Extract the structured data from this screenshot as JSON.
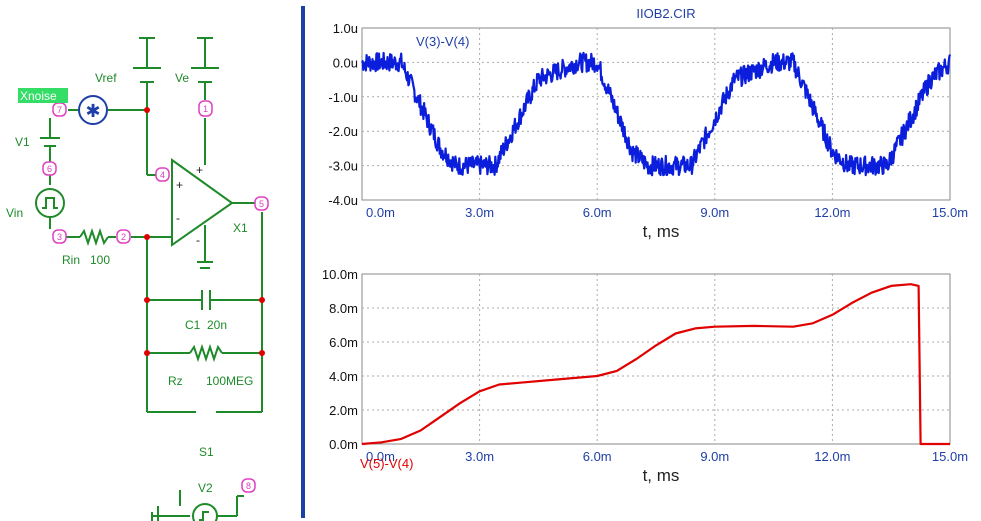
{
  "schematic": {
    "labels": {
      "xnoise": "Xnoise",
      "vref": "Vref",
      "ve": "Ve",
      "v1": "V1",
      "vin": "Vin",
      "rin": "Rin",
      "rin_value": "100",
      "x1": "X1",
      "c1": "C1",
      "c1_value": "20n",
      "rz": "Rz",
      "rz_value": "100MEG",
      "s1": "S1",
      "v2": "V2"
    },
    "nodes": {
      "n7": "7",
      "n1": "1",
      "n4": "4",
      "n6": "6",
      "n5": "5",
      "n3": "3",
      "n2": "2",
      "n8": "8"
    },
    "opamp_signs": {
      "plus": "+",
      "minus": "-"
    },
    "colors": {
      "wire": "#1f8a2a",
      "node": "#e040c0",
      "junction": "#e00000",
      "label": "#1f8a2a",
      "highlight": "#33dd66"
    }
  },
  "chart_data": [
    {
      "type": "line",
      "title": "IIOB2.CIR",
      "xlabel": "t, ms",
      "ylabel": "",
      "x_unit": "ms",
      "xlim": [
        0,
        15
      ],
      "ylim": [
        -4,
        1
      ],
      "x_ticks": [
        0,
        3,
        6,
        9,
        12,
        15
      ],
      "x_tick_labels": [
        "0.0m",
        "3.0m",
        "6.0m",
        "9.0m",
        "12.0m",
        "15.0m"
      ],
      "y_ticks": [
        1,
        0,
        -1,
        -2,
        -3,
        -4
      ],
      "y_tick_labels": [
        "1.0u",
        "0.0u",
        "-1.0u",
        "-2.0u",
        "-3.0u",
        "-4.0u"
      ],
      "grid": true,
      "noise_amplitude": 0.28,
      "series": [
        {
          "name": "V(3)-V(4)",
          "color": "#0a1edc",
          "x": [
            0,
            1.0,
            2.0,
            2.4,
            3.4,
            4.5,
            5.5,
            6.0,
            6.9,
            7.3,
            8.4,
            9.5,
            10.5,
            11.0,
            12.0,
            12.4,
            13.4,
            14.5,
            15.0
          ],
          "y": [
            0.0,
            0.0,
            -2.5,
            -3.0,
            -3.0,
            -0.5,
            0.0,
            0.0,
            -2.6,
            -3.0,
            -3.0,
            -0.5,
            0.0,
            0.0,
            -2.6,
            -3.0,
            -3.0,
            -0.5,
            0.0
          ]
        }
      ]
    },
    {
      "type": "line",
      "title": "",
      "xlabel": "t, ms",
      "ylabel": "",
      "x_unit": "ms",
      "xlim": [
        0,
        15
      ],
      "ylim": [
        0,
        10
      ],
      "x_ticks": [
        0,
        3,
        6,
        9,
        12,
        15
      ],
      "x_tick_labels": [
        "0.0m",
        "3.0m",
        "6.0m",
        "9.0m",
        "12.0m",
        "15.0m"
      ],
      "y_ticks": [
        10,
        8,
        6,
        4,
        2,
        0
      ],
      "y_tick_labels": [
        "10.0m",
        "8.0m",
        "6.0m",
        "4.0m",
        "2.0m",
        "0.0m"
      ],
      "grid": true,
      "series": [
        {
          "name": "V(5)-V(4)",
          "color": "#e00000",
          "x": [
            0,
            0.5,
            1.0,
            1.5,
            2.0,
            2.5,
            3.0,
            3.5,
            4.0,
            5.0,
            6.0,
            6.5,
            7.0,
            7.5,
            8.0,
            8.5,
            9.0,
            10.0,
            11.0,
            11.5,
            12.0,
            12.5,
            13.0,
            13.5,
            14.0,
            14.2,
            14.25,
            15.0
          ],
          "y": [
            0.0,
            0.1,
            0.3,
            0.8,
            1.6,
            2.4,
            3.1,
            3.5,
            3.6,
            3.8,
            4.0,
            4.3,
            5.0,
            5.8,
            6.5,
            6.8,
            6.9,
            6.95,
            6.9,
            7.1,
            7.6,
            8.3,
            8.9,
            9.3,
            9.4,
            9.3,
            0.0,
            0.0
          ]
        }
      ]
    }
  ]
}
